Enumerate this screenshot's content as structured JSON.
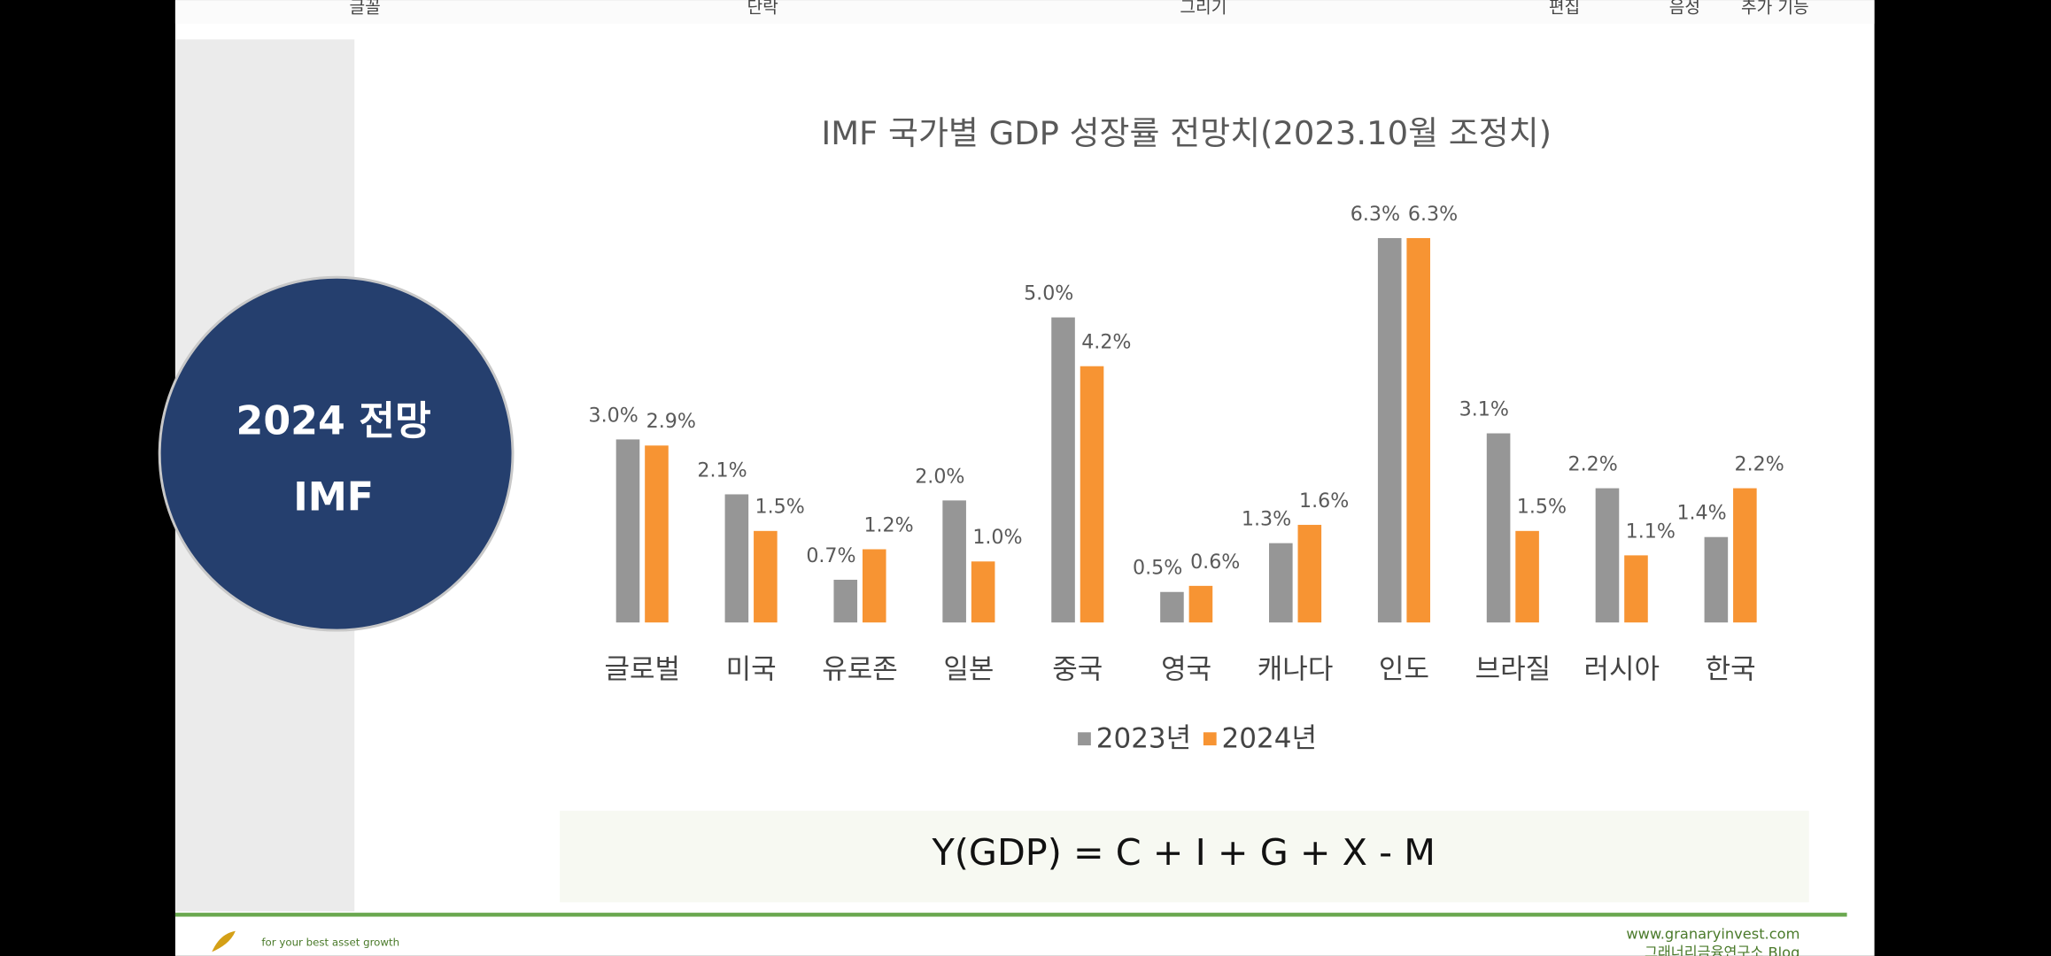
{
  "toolbar": {
    "groups": [
      "글꼴",
      "단락",
      "그리기",
      "편집",
      "음성",
      "추가 기능"
    ]
  },
  "badge": {
    "line1": "2024 전망",
    "line2": "IMF"
  },
  "chart_data": {
    "type": "bar",
    "title": "IMF  국가별 GDP 성장률 전망치(2023.10월 조정치)",
    "categories": [
      "글로벌",
      "미국",
      "유로존",
      "일본",
      "중국",
      "영국",
      "캐나다",
      "인도",
      "브라질",
      "러시아",
      "한국"
    ],
    "series": [
      {
        "name": "2023년",
        "color": "#969696",
        "values": [
          3.0,
          2.1,
          0.7,
          2.0,
          5.0,
          0.5,
          1.3,
          6.3,
          3.1,
          2.2,
          1.4
        ],
        "value_labels": [
          "3.0%",
          "2.1%",
          "0.7%",
          "2.0%",
          "5.0%",
          "0.5%",
          "1.3%",
          "6.3%",
          "3.1%",
          "2.2%",
          "1.4%"
        ]
      },
      {
        "name": "2024년",
        "color": "#f79433",
        "values": [
          2.9,
          1.5,
          1.2,
          1.0,
          4.2,
          0.6,
          1.6,
          6.3,
          1.5,
          1.1,
          2.2
        ],
        "value_labels": [
          "2.9%",
          "1.5%",
          "1.2%",
          "1.0%",
          "4.2%",
          "0.6%",
          "1.6%",
          "6.3%",
          "1.5%",
          "1.1%",
          "2.2%"
        ]
      }
    ],
    "legend": "bottom"
  },
  "formula": "Y(GDP)  =  C  +  I  +  G  +  X  -  M",
  "footer": {
    "slogan": "for your best asset growth",
    "url": "www.granaryinvest.com",
    "blog": "그래너리금융연구소 Blog"
  }
}
